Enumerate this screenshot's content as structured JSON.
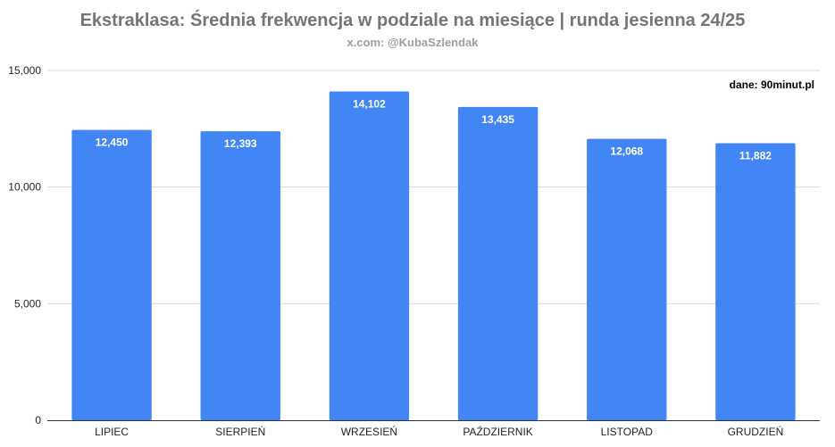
{
  "chart_data": {
    "type": "bar",
    "title": "Ekstraklasa: Średnia frekwencja w podziale na miesiące | runda jesienna 24/25",
    "subtitle": "x.com: @KubaSzlendak",
    "source_note": "dane: 90minut.pl",
    "categories": [
      "LIPIEC",
      "SIERPIEŃ",
      "WRZESIEŃ",
      "PAŹDZIERNIK",
      "LISTOPAD",
      "GRUDZIEŃ"
    ],
    "values": [
      12450,
      12393,
      14102,
      13435,
      12068,
      11882
    ],
    "value_labels": [
      "12,450",
      "12,393",
      "14,102",
      "13,435",
      "12,068",
      "11,882"
    ],
    "xlabel": "",
    "ylabel": "",
    "ylim": [
      0,
      15000
    ],
    "yticks": [
      0,
      5000,
      10000,
      15000
    ],
    "ytick_labels": [
      "0",
      "5,000",
      "10,000",
      "15,000"
    ],
    "grid": true,
    "legend": "none",
    "colors": {
      "bar": "#4285f4"
    }
  }
}
